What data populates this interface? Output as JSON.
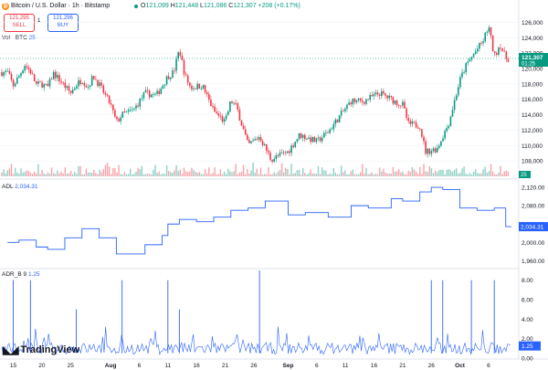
{
  "header": {
    "title": "Bitcoin / U.S. Dollar · 1h · Bitstamp",
    "ohlc": [
      {
        "k": "O",
        "v": "121,099"
      },
      {
        "k": "H",
        "v": "121,448"
      },
      {
        "k": "L",
        "v": "121,086"
      },
      {
        "k": "C",
        "v": "121,307"
      }
    ],
    "change": "+208 (+0.17%)"
  },
  "trade": {
    "sell_price": "121,295",
    "sell_label": "SELL",
    "spread": "1",
    "buy_price": "121,296",
    "buy_label": "BUY"
  },
  "volume": {
    "label": "Vol · BTC",
    "value": "25"
  },
  "adl": {
    "label": "ADL",
    "value": "2,034.31"
  },
  "adr": {
    "label": "ADR_B",
    "param": "9",
    "value": "1.25"
  },
  "branding": {
    "name": "TradingView"
  },
  "colors": {
    "up": "#089981",
    "down": "#f23645",
    "line": "#2962ff",
    "price_tag": "#089981",
    "grid": "#f0f3fa"
  },
  "chart_data": [
    {
      "type": "candlestick",
      "title": "Bitcoin / U.S. Dollar · 1h · Bitstamp",
      "ylim": [
        106000,
        127000
      ],
      "y_ticks": [
        "126,000",
        "124,000",
        "122,000",
        "120,000",
        "118,000",
        "116,000",
        "114,000",
        "112,000",
        "110,000",
        "108,000"
      ],
      "last_price": "121,307",
      "countdown": "01:25",
      "x_ticks": [
        "15",
        "20",
        "25",
        "Aug",
        "6",
        "11",
        "16",
        "21",
        "26",
        "Sep",
        "6",
        "11",
        "16",
        "21",
        "26",
        "Oct",
        "6"
      ],
      "close_path": [
        {
          "d": "Jul 14",
          "v": 119500
        },
        {
          "d": "Jul 15",
          "v": 117800
        },
        {
          "d": "Jul 16",
          "v": 119000
        },
        {
          "d": "Jul 17",
          "v": 120500
        },
        {
          "d": "Jul 18",
          "v": 119600
        },
        {
          "d": "Jul 19",
          "v": 117900
        },
        {
          "d": "Jul 20",
          "v": 118000
        },
        {
          "d": "Jul 21",
          "v": 117500
        },
        {
          "d": "Jul 22",
          "v": 119400
        },
        {
          "d": "Jul 23",
          "v": 118600
        },
        {
          "d": "Jul 24",
          "v": 117700
        },
        {
          "d": "Jul 25",
          "v": 116800
        },
        {
          "d": "Jul 26",
          "v": 117900
        },
        {
          "d": "Jul 27",
          "v": 118600
        },
        {
          "d": "Jul 28",
          "v": 117600
        },
        {
          "d": "Jul 29",
          "v": 119000
        },
        {
          "d": "Jul 30",
          "v": 117900
        },
        {
          "d": "Aug 1",
          "v": 115300
        },
        {
          "d": "Aug 2",
          "v": 113000
        },
        {
          "d": "Aug 3",
          "v": 114000
        },
        {
          "d": "Aug 5",
          "v": 114600
        },
        {
          "d": "Aug 7",
          "v": 116800
        },
        {
          "d": "Aug 9",
          "v": 116500
        },
        {
          "d": "Aug 11",
          "v": 119000
        },
        {
          "d": "Aug 12",
          "v": 119500
        },
        {
          "d": "Aug 13",
          "v": 122500
        },
        {
          "d": "Aug 14",
          "v": 119000
        },
        {
          "d": "Aug 15",
          "v": 117500
        },
        {
          "d": "Aug 17",
          "v": 117800
        },
        {
          "d": "Aug 19",
          "v": 114500
        },
        {
          "d": "Aug 21",
          "v": 113000
        },
        {
          "d": "Aug 22",
          "v": 115800
        },
        {
          "d": "Aug 23",
          "v": 115000
        },
        {
          "d": "Aug 25",
          "v": 110000
        },
        {
          "d": "Aug 27",
          "v": 111200
        },
        {
          "d": "Aug 29",
          "v": 108200
        },
        {
          "d": "Sep 1",
          "v": 109200
        },
        {
          "d": "Sep 3",
          "v": 111400
        },
        {
          "d": "Sep 6",
          "v": 110500
        },
        {
          "d": "Sep 8",
          "v": 111800
        },
        {
          "d": "Sep 10",
          "v": 113800
        },
        {
          "d": "Sep 12",
          "v": 115800
        },
        {
          "d": "Sep 14",
          "v": 115700
        },
        {
          "d": "Sep 17",
          "v": 116800
        },
        {
          "d": "Sep 19",
          "v": 116000
        },
        {
          "d": "Sep 20",
          "v": 115600
        },
        {
          "d": "Sep 21",
          "v": 115300
        },
        {
          "d": "Sep 22",
          "v": 112800
        },
        {
          "d": "Sep 24",
          "v": 112600
        },
        {
          "d": "Sep 25",
          "v": 109200
        },
        {
          "d": "Sep 27",
          "v": 109600
        },
        {
          "d": "Sep 29",
          "v": 112800
        },
        {
          "d": "Oct 1",
          "v": 118500
        },
        {
          "d": "Oct 2",
          "v": 120300
        },
        {
          "d": "Oct 4",
          "v": 122500
        },
        {
          "d": "Oct 5",
          "v": 123500
        },
        {
          "d": "Oct 6",
          "v": 125500
        },
        {
          "d": "Oct 7",
          "v": 121500
        },
        {
          "d": "Oct 8",
          "v": 123200
        },
        {
          "d": "Oct 9",
          "v": 121307
        }
      ]
    },
    {
      "type": "line",
      "title": "ADL",
      "ylim": [
        1945,
        2130
      ],
      "y_ticks": [
        "2,120.00",
        "2,080.00",
        "2,040.00",
        "2,000.00",
        "1,960.00"
      ],
      "x": [
        "Jul 14",
        "Jul 16",
        "Jul 19",
        "Jul 21",
        "Jul 24",
        "Jul 27",
        "Jul 30",
        "Aug 2",
        "Aug 4",
        "Aug 7",
        "Aug 10",
        "Aug 11",
        "Aug 13",
        "Aug 16",
        "Aug 19",
        "Aug 22",
        "Aug 25",
        "Aug 28",
        "Sep 1",
        "Sep 4",
        "Sep 8",
        "Sep 12",
        "Sep 15",
        "Sep 19",
        "Sep 21",
        "Sep 24",
        "Sep 26",
        "Sep 28",
        "Oct 1",
        "Oct 4",
        "Oct 7",
        "Oct 9"
      ],
      "values": [
        2000,
        2005,
        1990,
        1985,
        2010,
        2030,
        2010,
        1975,
        1975,
        1995,
        2015,
        2040,
        2050,
        2045,
        2055,
        2070,
        2075,
        2090,
        2060,
        2065,
        2055,
        2080,
        2075,
        2095,
        2090,
        2110,
        2120,
        2115,
        2075,
        2070,
        2075,
        2034.31
      ]
    },
    {
      "type": "histogram",
      "title": "ADR_B",
      "ylim": [
        0,
        9
      ],
      "y_ticks": [
        "8.00",
        "6.00",
        "4.00",
        "2.00",
        "0.00"
      ],
      "baseline": 1.0,
      "spikes": [
        {
          "d": "Jul 15",
          "v": 8
        },
        {
          "d": "Jul 18",
          "v": 8
        },
        {
          "d": "Jul 26",
          "v": 5
        },
        {
          "d": "Aug 3",
          "v": 8
        },
        {
          "d": "Aug 11",
          "v": 8
        },
        {
          "d": "Aug 13",
          "v": 5
        },
        {
          "d": "Aug 27",
          "v": 9
        },
        {
          "d": "Sep 26",
          "v": 8
        },
        {
          "d": "Sep 28",
          "v": 8
        },
        {
          "d": "Oct 3",
          "v": 8
        },
        {
          "d": "Oct 7",
          "v": 8
        }
      ]
    }
  ]
}
